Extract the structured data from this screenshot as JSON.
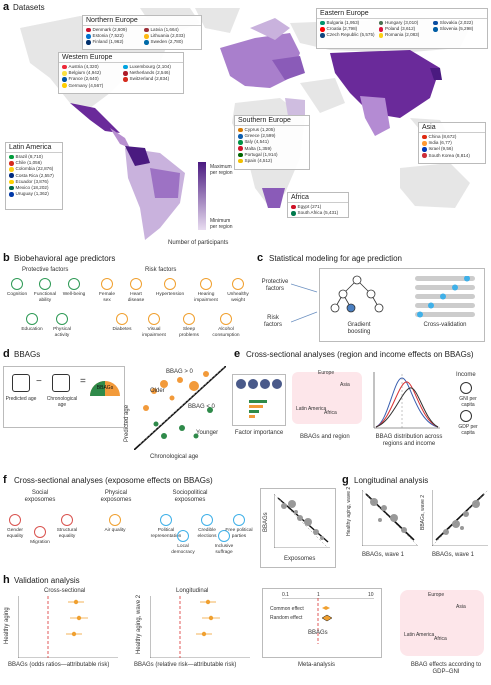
{
  "panel_a": {
    "letter": "a",
    "title": "Datasets",
    "colorbar": {
      "max_label": "Maximum\nper region",
      "min_label": "Minimum\nper region",
      "axis_label": "Number of participants",
      "max_color": "#4a1a80",
      "min_color": "#e8dcf0"
    },
    "regions": [
      {
        "name": "Northern Europe",
        "countries": [
          [
            "Denmark",
            "2,609"
          ],
          [
            "Estonia",
            "7,522"
          ],
          [
            "Finland",
            "1,962"
          ],
          [
            "Latvia",
            "1,664"
          ],
          [
            "Lithuania",
            "2,033"
          ],
          [
            "Sweden",
            "2,780"
          ]
        ]
      },
      {
        "name": "Eastern Europe",
        "countries": [
          [
            "Bulgaria",
            "1,953"
          ],
          [
            "Croatia",
            "2,798"
          ],
          [
            "Czech Republic",
            "5,575"
          ],
          [
            "Hungary",
            "3,010"
          ],
          [
            "Poland",
            "3,612"
          ],
          [
            "Romania",
            "2,083"
          ],
          [
            "Slovakia",
            "2,022"
          ],
          [
            "Slovenia",
            "5,298"
          ]
        ]
      },
      {
        "name": "Western Europe",
        "countries": [
          [
            "Austria",
            "4,320"
          ],
          [
            "Belgium",
            "4,942"
          ],
          [
            "France",
            "2,640"
          ],
          [
            "Germany",
            "4,567"
          ],
          [
            "Luxembourg",
            "2,104"
          ],
          [
            "Netherlands",
            "2,546"
          ],
          [
            "Switzerland",
            "2,834"
          ]
        ]
      },
      {
        "name": "Southern Europe",
        "countries": [
          [
            "Cyprus",
            "1,205"
          ],
          [
            "Greece",
            "2,599"
          ],
          [
            "Italy",
            "4,541"
          ],
          [
            "Malta",
            "1,359"
          ],
          [
            "Portugal",
            "1,914"
          ],
          [
            "Spain",
            "4,512"
          ]
        ]
      },
      {
        "name": "Latin America",
        "countries": [
          [
            "Brazil",
            "8,710"
          ],
          [
            "Chile",
            "1,056"
          ],
          [
            "Colombia",
            "22,876"
          ],
          [
            "Costa Rica",
            "2,557"
          ],
          [
            "Ecuador",
            "3,876"
          ],
          [
            "Mexico",
            "18,202"
          ],
          [
            "Uruguay",
            "1,362"
          ]
        ]
      },
      {
        "name": "Asia",
        "countries": [
          [
            "China",
            "8,672"
          ],
          [
            "India",
            "6,77"
          ],
          [
            "Israel",
            "9,56"
          ],
          [
            "South Korea",
            "8,814"
          ]
        ]
      },
      {
        "name": "Africa",
        "countries": [
          [
            "Egypt",
            "271"
          ],
          [
            "South Africa",
            "5,431"
          ]
        ]
      }
    ]
  },
  "panel_b": {
    "letter": "b",
    "title": "Biobehavioral age predictors",
    "protective_title": "Protective factors",
    "risk_title": "Risk factors",
    "protective": [
      "Cognition",
      "Functional ability",
      "Well-being",
      "Education",
      "Physical activity"
    ],
    "risk": [
      "Female sex",
      "Heart disease",
      "Hypertension",
      "Hearing impairment",
      "Unhealthy weight",
      "Diabetes",
      "Visual impairment",
      "Sleep problems",
      "Alcohol consumption"
    ]
  },
  "panel_c": {
    "letter": "c",
    "title": "Statistical modeling for age prediction",
    "protective_label": "Protective factors",
    "risk_label": "Risk factors",
    "model_label": "Gradient boosting",
    "cv_label": "Cross-validation"
  },
  "panel_d": {
    "letter": "d",
    "title": "BBAGs",
    "predicted": "Predicted age",
    "chronological": "Chronological age",
    "bbags": "BBAGs",
    "minus": "−",
    "equals": "=",
    "older": "Older",
    "younger": "Younger",
    "gap_pos": "BBAG > 0",
    "gap_neg": "BBAG < 0",
    "ylabel": "Predicted age",
    "xlabel": "Chronological age"
  },
  "panel_e": {
    "letter": "e",
    "title": "Cross-sectional analyses (region and income effects on BBAGs)",
    "factor_importance": "Factor importance",
    "bbags_region": "BBAGs and region",
    "distribution": "BBAG distribution across regions and income",
    "income": "Income",
    "gni": "GNI per capita",
    "gdp": "GDP per capita",
    "map_labels": [
      "Europe",
      "Asia",
      "Latin America",
      "Africa"
    ]
  },
  "panel_f": {
    "letter": "f",
    "title": "Cross-sectional analyses (exposome effects on BBAGs)",
    "social": "Social exposomes",
    "physical": "Physical exposomes",
    "sociopolitical": "Sociopolitical exposomes",
    "items": [
      "Gender equality",
      "Migration",
      "Structural equality",
      "Air quality",
      "Political representation",
      "Local democracy",
      "Credible elections",
      "Inclusive suffrage",
      "Free political parties"
    ],
    "ylabel": "BBAGs",
    "xlabel": "Exposomes"
  },
  "panel_g": {
    "letter": "g",
    "title": "Longitudinal analysis",
    "ylabel1": "Healthy aging, wave 2",
    "xlabel1": "BBAGs, wave 1",
    "ylabel2": "BBAGs, wave 2",
    "xlabel2": "BBAGs, wave 1"
  },
  "panel_h": {
    "letter": "h",
    "title": "Validation analysis",
    "cs_title": "Cross-sectional",
    "long_title": "Longitudinal",
    "ylabel1": "Healthy aging",
    "xlabel1": "BBAGs (odds ratios—attributable risk)",
    "ylabel2": "Healthy aging, wave 2",
    "xlabel2": "BBAGs (relative risk—attributable risk)",
    "meta_ticks": [
      "0.1",
      "1",
      "10"
    ],
    "common": "Common effect",
    "random": "Random effect",
    "meta_bbags": "BBAGs",
    "meta_label": "Meta-analysis",
    "gdp_label": "BBAG effects according to GDP–GNI"
  }
}
